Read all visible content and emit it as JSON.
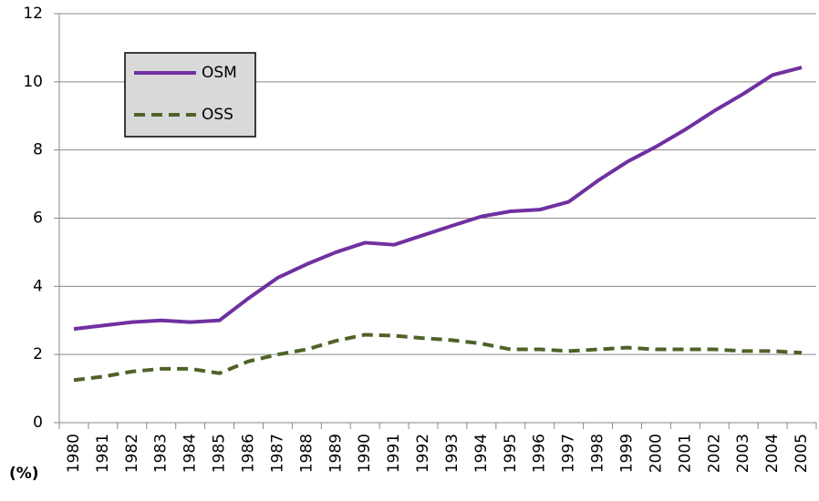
{
  "chart_data": {
    "type": "line",
    "ylabel": "(%)",
    "categories": [
      "1980",
      "1981",
      "1982",
      "1983",
      "1984",
      "1985",
      "1986",
      "1987",
      "1988",
      "1989",
      "1990",
      "1991",
      "1992",
      "1993",
      "1994",
      "1995",
      "1996",
      "1997",
      "1998",
      "1999",
      "2000",
      "2001",
      "2002",
      "2003",
      "2004",
      "2005"
    ],
    "series": [
      {
        "name": "OSM",
        "color": "#7030a0",
        "dash": false,
        "values": [
          2.75,
          2.85,
          2.95,
          3.0,
          2.95,
          3.0,
          3.65,
          4.25,
          4.65,
          5.0,
          5.28,
          5.22,
          5.5,
          5.78,
          6.05,
          6.2,
          6.25,
          6.48,
          7.1,
          7.65,
          8.1,
          8.6,
          9.15,
          9.65,
          10.2,
          10.42
        ]
      },
      {
        "name": "OSS",
        "color": "#4f6228",
        "dash": true,
        "values": [
          1.25,
          1.35,
          1.5,
          1.58,
          1.58,
          1.45,
          1.8,
          2.0,
          2.15,
          2.4,
          2.58,
          2.55,
          2.48,
          2.42,
          2.32,
          2.15,
          2.15,
          2.1,
          2.15,
          2.2,
          2.15,
          2.15,
          2.15,
          2.1,
          2.1,
          2.05
        ]
      }
    ],
    "ylim": [
      0,
      12
    ],
    "yticks": [
      0,
      2,
      4,
      6,
      8,
      10,
      12
    ],
    "grid": true,
    "legend": "top-left"
  }
}
